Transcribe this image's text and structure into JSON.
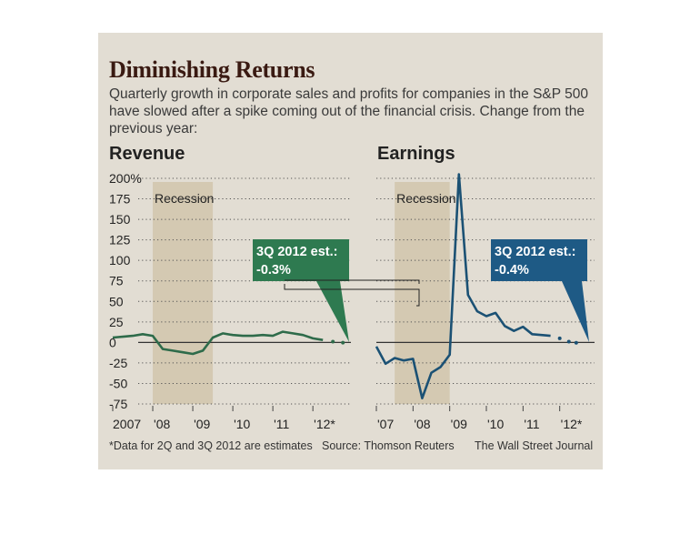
{
  "header": {
    "title": "Diminishing Returns",
    "subtitle": "Quarterly growth in corporate sales and profits for companies in the S&P 500 have slowed after a spike coming out of the financial crisis. Change from the previous year:"
  },
  "footer": {
    "note": "*Data for 2Q and 3Q 2012 are estimates",
    "source": "Source: Thomson Reuters",
    "credit": "The Wall Street Journal"
  },
  "colors": {
    "background": "#e2ddd3",
    "recession_band": "#d4c9b2",
    "revenue_line": "#2e6b4a",
    "revenue_callout": "#2e7a50",
    "earnings_line": "#1b5174",
    "earnings_callout": "#1e5a85"
  },
  "chart_data": [
    {
      "type": "line",
      "title": "Revenue",
      "yunit": "%",
      "ylim": [
        -75,
        200
      ],
      "yticks": [
        -75,
        -50,
        -25,
        0,
        25,
        50,
        75,
        100,
        125,
        150,
        175,
        200
      ],
      "ytick_labels": [
        "-75",
        "-50",
        "-25",
        "0",
        "25",
        "50",
        "75",
        "100",
        "125",
        "150",
        "175",
        "200%"
      ],
      "xlim": [
        2007.0,
        2012.95
      ],
      "xticks": [
        {
          "x": 2007.0,
          "label": "2007"
        },
        {
          "x": 2008.0,
          "label": "'08"
        },
        {
          "x": 2009.0,
          "label": "'09"
        },
        {
          "x": 2010.0,
          "label": "'10"
        },
        {
          "x": 2011.0,
          "label": "'11"
        },
        {
          "x": 2012.0,
          "label": "'12*"
        }
      ],
      "shaded_region": {
        "label": "Recession",
        "start": 2008.0,
        "end": 2009.5
      },
      "grid": "dotted horizontal",
      "series": [
        {
          "values": [
            [
              2007.0,
              6
            ],
            [
              2007.25,
              7
            ],
            [
              2007.5,
              8
            ],
            [
              2007.75,
              10
            ],
            [
              2008.0,
              8
            ],
            [
              2008.25,
              -8
            ],
            [
              2008.5,
              -10
            ],
            [
              2008.75,
              -12
            ],
            [
              2009.0,
              -14
            ],
            [
              2009.25,
              -10
            ],
            [
              2009.5,
              6
            ],
            [
              2009.75,
              11
            ],
            [
              2010.0,
              9
            ],
            [
              2010.25,
              8
            ],
            [
              2010.5,
              8
            ],
            [
              2010.75,
              9
            ],
            [
              2011.0,
              8
            ],
            [
              2011.25,
              13
            ],
            [
              2011.5,
              11
            ],
            [
              2011.75,
              9
            ],
            [
              2012.0,
              5
            ],
            [
              2012.25,
              3
            ]
          ]
        }
      ],
      "estimates": [
        [
          2012.25,
          3
        ],
        [
          2012.5,
          1
        ],
        [
          2012.75,
          -0.3
        ]
      ],
      "annotation": {
        "line1": "3Q 2012 est.:",
        "line2": "-0.3%"
      }
    },
    {
      "type": "line",
      "title": "Earnings",
      "yunit": "%",
      "ylim": [
        -75,
        200
      ],
      "xlim": [
        2007.0,
        2012.95
      ],
      "xticks": [
        {
          "x": 2007.0,
          "label": "'07"
        },
        {
          "x": 2008.0,
          "label": "'08"
        },
        {
          "x": 2009.0,
          "label": "'09"
        },
        {
          "x": 2010.0,
          "label": "'10"
        },
        {
          "x": 2011.0,
          "label": "'11"
        },
        {
          "x": 2012.0,
          "label": "'12*"
        }
      ],
      "shaded_region": {
        "label": "Recession",
        "start": 2007.5,
        "end": 2009.0
      },
      "grid": "dotted horizontal",
      "series": [
        {
          "values": [
            [
              2007.0,
              -5
            ],
            [
              2007.25,
              -26
            ],
            [
              2007.5,
              -19
            ],
            [
              2007.75,
              -22
            ],
            [
              2008.0,
              -20
            ],
            [
              2008.25,
              -68
            ],
            [
              2008.5,
              -37
            ],
            [
              2008.75,
              -30
            ],
            [
              2009.0,
              -15
            ],
            [
              2009.25,
              205
            ],
            [
              2009.5,
              58
            ],
            [
              2009.75,
              38
            ],
            [
              2010.0,
              32
            ],
            [
              2010.25,
              36
            ],
            [
              2010.5,
              20
            ],
            [
              2010.75,
              14
            ],
            [
              2011.0,
              19
            ],
            [
              2011.25,
              10
            ],
            [
              2011.5,
              9
            ],
            [
              2011.75,
              8
            ]
          ]
        }
      ],
      "estimates": [
        [
          2011.75,
          8
        ],
        [
          2012.0,
          5
        ],
        [
          2012.25,
          1
        ],
        [
          2012.45,
          -0.4
        ]
      ],
      "annotation": {
        "line1": "3Q 2012 est.:",
        "line2": "-0.4%"
      }
    }
  ]
}
